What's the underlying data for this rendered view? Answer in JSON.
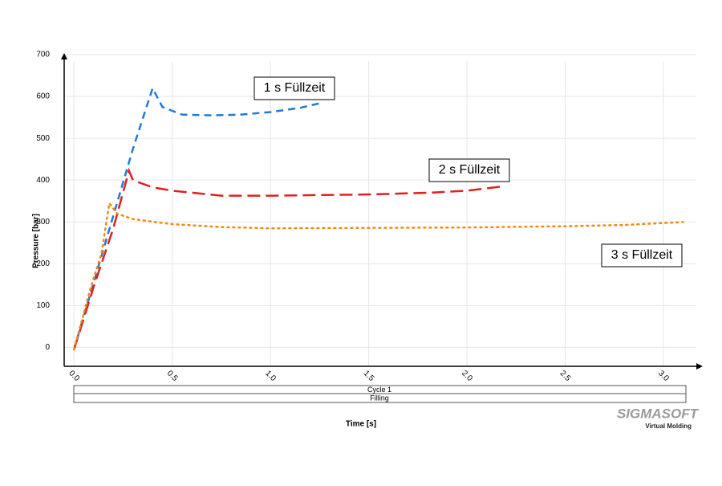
{
  "chart_data": {
    "type": "line",
    "x_label": "Time [s]",
    "y_label": "Pressure [bar]",
    "xlim": [
      -0.05,
      3.2
    ],
    "ylim": [
      -30,
      700
    ],
    "xticks": [
      {
        "value": 0,
        "label": "0.0"
      },
      0.5,
      {
        "value": 1,
        "label": "1.0"
      },
      1.5,
      {
        "value": 2,
        "label": "2.0"
      },
      2.5,
      {
        "value": 3,
        "label": "3.0"
      }
    ],
    "yticks": [
      0,
      100,
      200,
      300,
      400,
      500,
      600,
      700
    ],
    "grid": true,
    "series": [
      {
        "name": "1 s Füllzeit",
        "color": "#1f7bd6",
        "style": "dashed",
        "x": [
          0,
          0.1,
          0.2,
          0.3,
          0.4,
          0.45,
          0.55,
          0.7,
          0.85,
          1.0,
          1.15,
          1.26
        ],
        "values": [
          10,
          170,
          330,
          490,
          635,
          590,
          572,
          570,
          572,
          578,
          588,
          600
        ]
      },
      {
        "name": "2 s Füllzeit",
        "color": "#e02020",
        "style": "long-dashed",
        "x": [
          0,
          0.1,
          0.2,
          0.28,
          0.3,
          0.4,
          0.5,
          0.75,
          1.0,
          1.5,
          1.8,
          2.0,
          2.18
        ],
        "values": [
          10,
          160,
          300,
          438,
          415,
          398,
          390,
          378,
          378,
          381,
          385,
          390,
          400
        ]
      },
      {
        "name": "3 s Füllzeit",
        "color": "#f08a10",
        "style": "dotted",
        "x": [
          0,
          0.08,
          0.14,
          0.18,
          0.22,
          0.3,
          0.5,
          0.75,
          1.0,
          1.5,
          2.0,
          2.5,
          2.8,
          3.1
        ],
        "values": [
          10,
          150,
          240,
          360,
          335,
          322,
          310,
          303,
          300,
          301,
          302,
          305,
          308,
          315
        ]
      }
    ]
  },
  "timeline": [
    "Cycle 1",
    "Filling"
  ],
  "logo": {
    "name": "SIGMASOFT",
    "tagline": "Virtual Molding"
  }
}
